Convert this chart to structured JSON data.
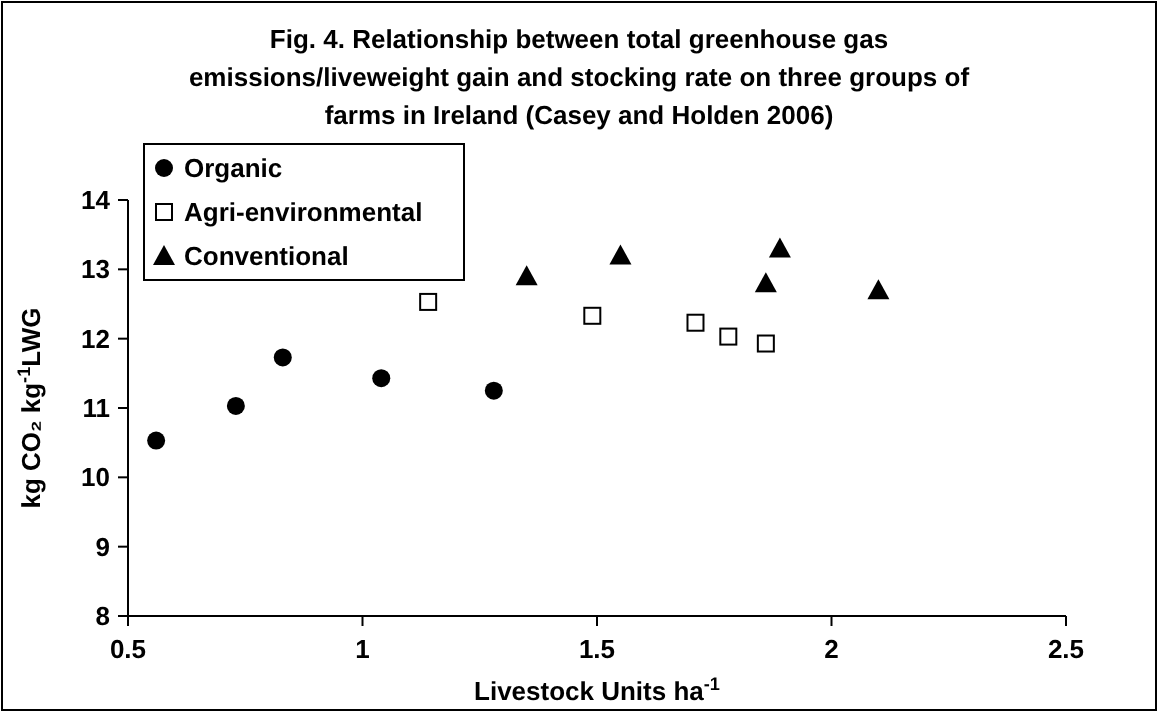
{
  "chart_data": {
    "type": "scatter",
    "title": "Fig.  4.  Relationship between total greenhouse gas emissions/liveweight gain and stocking rate on three groups of farms in Ireland (Casey and Holden 2006)",
    "xlabel": "Livestock Units ha$^{-1}$",
    "ylabel": "kg CO₂ kg$^{-1}$LWG",
    "xlim": [
      0.5,
      2.5
    ],
    "xticks": [
      0.5,
      1,
      1.5,
      2,
      2.5
    ],
    "ylim": [
      8,
      14
    ],
    "yticks": [
      8,
      9,
      10,
      11,
      12,
      13,
      14
    ],
    "grid": false,
    "legend": "top left",
    "series": [
      {
        "name": "Organic",
        "color": "#000000",
        "marker": "circle",
        "x": [
          0.56,
          0.73,
          0.83,
          1.04,
          1.28
        ],
        "values": [
          10.53,
          11.03,
          11.73,
          11.43,
          11.25
        ]
      },
      {
        "name": "Agri-environmental",
        "color": "#000000",
        "marker": "square",
        "x": [
          1.14,
          1.49,
          1.71,
          1.78,
          1.86
        ],
        "values": [
          12.53,
          12.33,
          12.23,
          12.03,
          11.93
        ]
      },
      {
        "name": "Conventional",
        "color": "#000000",
        "marker": "triangle",
        "x": [
          1.35,
          1.55,
          1.86,
          1.89,
          2.1
        ],
        "values": [
          12.9,
          13.2,
          12.8,
          13.3,
          12.7
        ]
      }
    ]
  }
}
